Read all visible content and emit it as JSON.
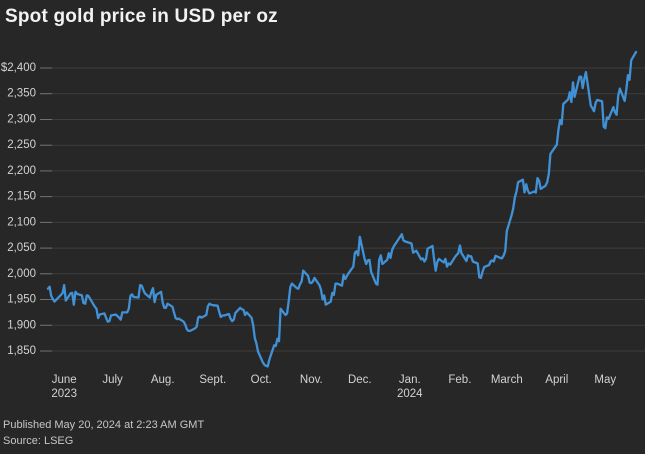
{
  "header": {
    "title": "Spot gold price in USD per oz"
  },
  "footer": {
    "published": "Published May 20, 2024 at 2:23 AM GMT",
    "source": "Source: LSEG"
  },
  "colors": {
    "background": "#272727",
    "line": "#4191d6",
    "grid": "#3e3e3e",
    "tick": "#707070",
    "axis_text": "#d2d2d2",
    "title_text": "#f2f2f2",
    "footer_text": "#c6c6c6"
  },
  "chart_data": {
    "type": "line",
    "title": "Spot gold price in USD per oz",
    "series_name": "Spot gold price (USD per oz)",
    "xlabel": "",
    "ylabel": "USD per oz",
    "grid": true,
    "legend": "none",
    "x_range": [
      "2023-05-22",
      "2024-05-20"
    ],
    "ylim": [
      1850,
      2400
    ],
    "y_ticks": [
      {
        "label": "$2,400",
        "value": 2400
      },
      {
        "label": "2,350",
        "value": 2350
      },
      {
        "label": "2,300",
        "value": 2300
      },
      {
        "label": "2,250",
        "value": 2250
      },
      {
        "label": "2,200",
        "value": 2200
      },
      {
        "label": "2,150",
        "value": 2150
      },
      {
        "label": "2,100",
        "value": 2100
      },
      {
        "label": "2,050",
        "value": 2050
      },
      {
        "label": "2,000",
        "value": 2000
      },
      {
        "label": "1,950",
        "value": 1950
      },
      {
        "label": "1,900",
        "value": 1900
      },
      {
        "label": "1,850",
        "value": 1850
      }
    ],
    "x_ticks": [
      {
        "label": "June",
        "sub": "2023",
        "date": "2023-06-01"
      },
      {
        "label": "July",
        "date": "2023-07-01"
      },
      {
        "label": "Aug.",
        "date": "2023-08-01"
      },
      {
        "label": "Sept.",
        "date": "2023-09-01"
      },
      {
        "label": "Oct.",
        "date": "2023-10-01"
      },
      {
        "label": "Nov.",
        "date": "2023-11-01"
      },
      {
        "label": "Dec.",
        "date": "2023-12-01"
      },
      {
        "label": "Jan.",
        "sub": "2024",
        "date": "2024-01-01"
      },
      {
        "label": "Feb.",
        "date": "2024-02-01"
      },
      {
        "label": "March",
        "date": "2024-03-01"
      },
      {
        "label": "April",
        "date": "2024-04-01"
      },
      {
        "label": "May",
        "date": "2024-05-01"
      }
    ],
    "points": [
      [
        "2023-05-22",
        1971
      ],
      [
        "2023-05-23",
        1975
      ],
      [
        "2023-05-24",
        1957
      ],
      [
        "2023-05-25",
        1951
      ],
      [
        "2023-05-26",
        1946
      ],
      [
        "2023-05-30",
        1959
      ],
      [
        "2023-05-31",
        1962
      ],
      [
        "2023-06-01",
        1978
      ],
      [
        "2023-06-02",
        1948
      ],
      [
        "2023-06-05",
        1962
      ],
      [
        "2023-06-06",
        1963
      ],
      [
        "2023-06-07",
        1940
      ],
      [
        "2023-06-08",
        1965
      ],
      [
        "2023-06-09",
        1961
      ],
      [
        "2023-06-12",
        1958
      ],
      [
        "2023-06-13",
        1943
      ],
      [
        "2023-06-14",
        1942
      ],
      [
        "2023-06-15",
        1958
      ],
      [
        "2023-06-16",
        1957
      ],
      [
        "2023-06-20",
        1936
      ],
      [
        "2023-06-21",
        1932
      ],
      [
        "2023-06-22",
        1914
      ],
      [
        "2023-06-23",
        1921
      ],
      [
        "2023-06-26",
        1923
      ],
      [
        "2023-06-27",
        1914
      ],
      [
        "2023-06-28",
        1907
      ],
      [
        "2023-06-29",
        1908
      ],
      [
        "2023-06-30",
        1919
      ],
      [
        "2023-07-03",
        1921
      ],
      [
        "2023-07-05",
        1915
      ],
      [
        "2023-07-06",
        1911
      ],
      [
        "2023-07-07",
        1925
      ],
      [
        "2023-07-10",
        1925
      ],
      [
        "2023-07-11",
        1932
      ],
      [
        "2023-07-12",
        1957
      ],
      [
        "2023-07-13",
        1960
      ],
      [
        "2023-07-14",
        1955
      ],
      [
        "2023-07-17",
        1954
      ],
      [
        "2023-07-18",
        1978
      ],
      [
        "2023-07-19",
        1977
      ],
      [
        "2023-07-20",
        1969
      ],
      [
        "2023-07-21",
        1962
      ],
      [
        "2023-07-24",
        1954
      ],
      [
        "2023-07-25",
        1965
      ],
      [
        "2023-07-26",
        1972
      ],
      [
        "2023-07-27",
        1945
      ],
      [
        "2023-07-28",
        1959
      ],
      [
        "2023-07-31",
        1965
      ],
      [
        "2023-08-01",
        1944
      ],
      [
        "2023-08-02",
        1934
      ],
      [
        "2023-08-03",
        1934
      ],
      [
        "2023-08-04",
        1942
      ],
      [
        "2023-08-07",
        1936
      ],
      [
        "2023-08-08",
        1925
      ],
      [
        "2023-08-09",
        1914
      ],
      [
        "2023-08-10",
        1912
      ],
      [
        "2023-08-11",
        1913
      ],
      [
        "2023-08-14",
        1907
      ],
      [
        "2023-08-15",
        1901
      ],
      [
        "2023-08-16",
        1892
      ],
      [
        "2023-08-17",
        1889
      ],
      [
        "2023-08-18",
        1889
      ],
      [
        "2023-08-21",
        1894
      ],
      [
        "2023-08-22",
        1897
      ],
      [
        "2023-08-23",
        1915
      ],
      [
        "2023-08-24",
        1917
      ],
      [
        "2023-08-25",
        1915
      ],
      [
        "2023-08-28",
        1920
      ],
      [
        "2023-08-29",
        1937
      ],
      [
        "2023-08-30",
        1942
      ],
      [
        "2023-08-31",
        1940
      ],
      [
        "2023-09-01",
        1939
      ],
      [
        "2023-09-04",
        1938
      ],
      [
        "2023-09-05",
        1926
      ],
      [
        "2023-09-06",
        1916
      ],
      [
        "2023-09-07",
        1919
      ],
      [
        "2023-09-08",
        1919
      ],
      [
        "2023-09-11",
        1922
      ],
      [
        "2023-09-12",
        1913
      ],
      [
        "2023-09-13",
        1908
      ],
      [
        "2023-09-14",
        1911
      ],
      [
        "2023-09-15",
        1924
      ],
      [
        "2023-09-18",
        1934
      ],
      [
        "2023-09-19",
        1931
      ],
      [
        "2023-09-20",
        1930
      ],
      [
        "2023-09-21",
        1920
      ],
      [
        "2023-09-22",
        1925
      ],
      [
        "2023-09-25",
        1915
      ],
      [
        "2023-09-26",
        1900
      ],
      [
        "2023-09-27",
        1875
      ],
      [
        "2023-09-28",
        1865
      ],
      [
        "2023-09-29",
        1849
      ],
      [
        "2023-10-02",
        1828
      ],
      [
        "2023-10-03",
        1823
      ],
      [
        "2023-10-04",
        1821
      ],
      [
        "2023-10-05",
        1820
      ],
      [
        "2023-10-06",
        1833
      ],
      [
        "2023-10-09",
        1861
      ],
      [
        "2023-10-10",
        1860
      ],
      [
        "2023-10-11",
        1874
      ],
      [
        "2023-10-12",
        1869
      ],
      [
        "2023-10-13",
        1932
      ],
      [
        "2023-10-16",
        1920
      ],
      [
        "2023-10-17",
        1923
      ],
      [
        "2023-10-18",
        1947
      ],
      [
        "2023-10-19",
        1974
      ],
      [
        "2023-10-20",
        1981
      ],
      [
        "2023-10-23",
        1972
      ],
      [
        "2023-10-24",
        1971
      ],
      [
        "2023-10-25",
        1980
      ],
      [
        "2023-10-26",
        1985
      ],
      [
        "2023-10-27",
        2006
      ],
      [
        "2023-10-30",
        1996
      ],
      [
        "2023-10-31",
        1983
      ],
      [
        "2023-11-01",
        1982
      ],
      [
        "2023-11-02",
        1985
      ],
      [
        "2023-11-03",
        1992
      ],
      [
        "2023-11-06",
        1978
      ],
      [
        "2023-11-07",
        1969
      ],
      [
        "2023-11-08",
        1950
      ],
      [
        "2023-11-09",
        1958
      ],
      [
        "2023-11-10",
        1940
      ],
      [
        "2023-11-13",
        1946
      ],
      [
        "2023-11-14",
        1963
      ],
      [
        "2023-11-15",
        1959
      ],
      [
        "2023-11-16",
        1981
      ],
      [
        "2023-11-17",
        1981
      ],
      [
        "2023-11-20",
        1977
      ],
      [
        "2023-11-21",
        1998
      ],
      [
        "2023-11-22",
        1990
      ],
      [
        "2023-11-24",
        2001
      ],
      [
        "2023-11-27",
        2014
      ],
      [
        "2023-11-28",
        2041
      ],
      [
        "2023-11-29",
        2044
      ],
      [
        "2023-11-30",
        2036
      ],
      [
        "2023-12-01",
        2072
      ],
      [
        "2023-12-04",
        2029
      ],
      [
        "2023-12-05",
        2019
      ],
      [
        "2023-12-06",
        2026
      ],
      [
        "2023-12-07",
        2027
      ],
      [
        "2023-12-08",
        2004
      ],
      [
        "2023-12-11",
        1981
      ],
      [
        "2023-12-12",
        1979
      ],
      [
        "2023-12-13",
        2027
      ],
      [
        "2023-12-14",
        2036
      ],
      [
        "2023-12-15",
        2019
      ],
      [
        "2023-12-18",
        2027
      ],
      [
        "2023-12-19",
        2040
      ],
      [
        "2023-12-20",
        2031
      ],
      [
        "2023-12-21",
        2046
      ],
      [
        "2023-12-22",
        2053
      ],
      [
        "2023-12-27",
        2077
      ],
      [
        "2023-12-28",
        2065
      ],
      [
        "2023-12-29",
        2063
      ],
      [
        "2024-01-02",
        2059
      ],
      [
        "2024-01-03",
        2041
      ],
      [
        "2024-01-04",
        2043
      ],
      [
        "2024-01-05",
        2045
      ],
      [
        "2024-01-08",
        2028
      ],
      [
        "2024-01-09",
        2030
      ],
      [
        "2024-01-10",
        2024
      ],
      [
        "2024-01-11",
        2029
      ],
      [
        "2024-01-12",
        2049
      ],
      [
        "2024-01-15",
        2054
      ],
      [
        "2024-01-16",
        2028
      ],
      [
        "2024-01-17",
        2006
      ],
      [
        "2024-01-18",
        2023
      ],
      [
        "2024-01-19",
        2029
      ],
      [
        "2024-01-22",
        2022
      ],
      [
        "2024-01-23",
        2029
      ],
      [
        "2024-01-24",
        2014
      ],
      [
        "2024-01-25",
        2020
      ],
      [
        "2024-01-26",
        2018
      ],
      [
        "2024-01-29",
        2033
      ],
      [
        "2024-01-30",
        2037
      ],
      [
        "2024-01-31",
        2040
      ],
      [
        "2024-02-01",
        2055
      ],
      [
        "2024-02-02",
        2040
      ],
      [
        "2024-02-05",
        2025
      ],
      [
        "2024-02-06",
        2036
      ],
      [
        "2024-02-07",
        2034
      ],
      [
        "2024-02-08",
        2034
      ],
      [
        "2024-02-09",
        2024
      ],
      [
        "2024-02-12",
        2020
      ],
      [
        "2024-02-13",
        1993
      ],
      [
        "2024-02-14",
        1992
      ],
      [
        "2024-02-15",
        2004
      ],
      [
        "2024-02-16",
        2013
      ],
      [
        "2024-02-19",
        2017
      ],
      [
        "2024-02-20",
        2024
      ],
      [
        "2024-02-21",
        2026
      ],
      [
        "2024-02-22",
        2024
      ],
      [
        "2024-02-23",
        2035
      ],
      [
        "2024-02-26",
        2031
      ],
      [
        "2024-02-27",
        2030
      ],
      [
        "2024-02-28",
        2035
      ],
      [
        "2024-02-29",
        2044
      ],
      [
        "2024-03-01",
        2083
      ],
      [
        "2024-03-04",
        2114
      ],
      [
        "2024-03-05",
        2127
      ],
      [
        "2024-03-06",
        2148
      ],
      [
        "2024-03-07",
        2160
      ],
      [
        "2024-03-08",
        2178
      ],
      [
        "2024-03-11",
        2183
      ],
      [
        "2024-03-12",
        2158
      ],
      [
        "2024-03-13",
        2174
      ],
      [
        "2024-03-14",
        2162
      ],
      [
        "2024-03-15",
        2156
      ],
      [
        "2024-03-18",
        2160
      ],
      [
        "2024-03-19",
        2158
      ],
      [
        "2024-03-20",
        2186
      ],
      [
        "2024-03-21",
        2181
      ],
      [
        "2024-03-22",
        2165
      ],
      [
        "2024-03-25",
        2171
      ],
      [
        "2024-03-26",
        2178
      ],
      [
        "2024-03-27",
        2194
      ],
      [
        "2024-03-28",
        2233
      ],
      [
        "2024-04-01",
        2251
      ],
      [
        "2024-04-02",
        2281
      ],
      [
        "2024-04-03",
        2299
      ],
      [
        "2024-04-04",
        2291
      ],
      [
        "2024-04-05",
        2330
      ],
      [
        "2024-04-08",
        2339
      ],
      [
        "2024-04-09",
        2353
      ],
      [
        "2024-04-10",
        2334
      ],
      [
        "2024-04-11",
        2372
      ],
      [
        "2024-04-12",
        2344
      ],
      [
        "2024-04-15",
        2383
      ],
      [
        "2024-04-16",
        2383
      ],
      [
        "2024-04-17",
        2361
      ],
      [
        "2024-04-18",
        2379
      ],
      [
        "2024-04-19",
        2392
      ],
      [
        "2024-04-22",
        2327
      ],
      [
        "2024-04-23",
        2322
      ],
      [
        "2024-04-24",
        2316
      ],
      [
        "2024-04-25",
        2332
      ],
      [
        "2024-04-26",
        2338
      ],
      [
        "2024-04-29",
        2335
      ],
      [
        "2024-04-30",
        2286
      ],
      [
        "2024-05-01",
        2283
      ],
      [
        "2024-05-02",
        2304
      ],
      [
        "2024-05-03",
        2301
      ],
      [
        "2024-05-06",
        2324
      ],
      [
        "2024-05-07",
        2314
      ],
      [
        "2024-05-08",
        2309
      ],
      [
        "2024-05-09",
        2346
      ],
      [
        "2024-05-10",
        2360
      ],
      [
        "2024-05-13",
        2336
      ],
      [
        "2024-05-14",
        2358
      ],
      [
        "2024-05-15",
        2386
      ],
      [
        "2024-05-16",
        2377
      ],
      [
        "2024-05-17",
        2415
      ],
      [
        "2024-05-20",
        2431
      ]
    ]
  }
}
